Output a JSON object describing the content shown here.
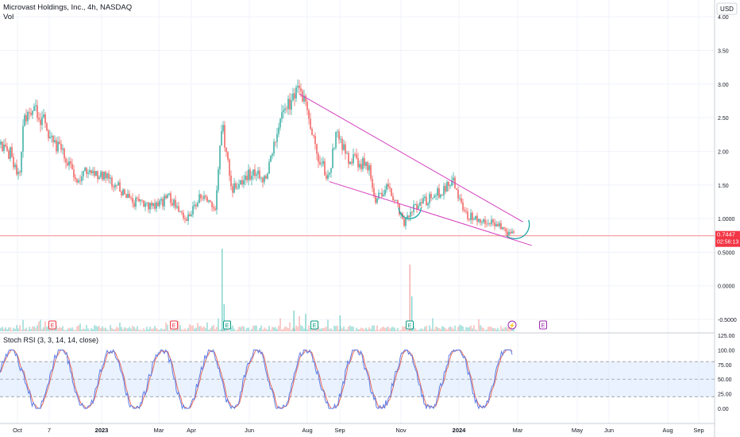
{
  "header": {
    "title": "Microvast Holdings, Inc., 4h, NASDAQ",
    "volume_label": "Vol",
    "currency": "USD"
  },
  "colors": {
    "up": "#26a69a",
    "down": "#ef5350",
    "trendline": "#d63fbf",
    "cup": "#1aa7a7",
    "price_line": "#f28b8b",
    "price_badge": "#f23645",
    "rsi_k": "#5b7be8",
    "rsi_d": "#e86a5b",
    "rsi_band": "#dbeafd",
    "earnings_red": "#f23645",
    "earnings_teal": "#089981",
    "earnings_purple": "#9c27b0"
  },
  "price_axis": {
    "ticks": [
      "4.00",
      "3.50",
      "3.00",
      "2.50",
      "2.00",
      "1.50",
      "1.0000",
      "0.5000",
      "0.0000",
      "-0.5000"
    ],
    "current_price": "0.7447",
    "countdown": "02:56:13"
  },
  "indicator": {
    "label": "Stoch RSI (3, 3, 14, 14, close)",
    "ticks": [
      "125.00",
      "100.00",
      "75.00",
      "50.00",
      "25.00",
      "0.00"
    ]
  },
  "time_axis": {
    "labels": [
      "Oct",
      "7",
      "2023",
      "Mar",
      "Apr",
      "Jun",
      "Aug",
      "Sep",
      "Nov",
      "2024",
      "Mar",
      "May",
      "Jun",
      "Aug",
      "Sep"
    ]
  },
  "earnings_markers": [
    {
      "label": "E",
      "kind": "red"
    },
    {
      "label": "E",
      "kind": "red"
    },
    {
      "label": "E",
      "kind": "teal"
    },
    {
      "label": "E",
      "kind": "teal"
    },
    {
      "label": "E",
      "kind": "teal"
    },
    {
      "label": "⚡",
      "kind": "purple"
    },
    {
      "label": "E",
      "kind": "purple"
    }
  ],
  "chart_data": {
    "type": "candlestick",
    "title": "Microvast Holdings, Inc., 4h, NASDAQ",
    "y_unit": "USD",
    "ylim": [
      -0.7,
      4.25
    ],
    "x_range": [
      "2022-09-24",
      "2024-09-20"
    ],
    "price_path": [
      [
        "2022-09-26",
        2.1
      ],
      [
        "2022-10-05",
        1.95
      ],
      [
        "2022-10-14",
        1.55
      ],
      [
        "2022-10-18",
        2.45
      ],
      [
        "2022-10-31",
        2.6
      ],
      [
        "2022-11-07",
        2.45
      ],
      [
        "2022-11-17",
        2.15
      ],
      [
        "2022-12-01",
        1.9
      ],
      [
        "2022-12-12",
        1.55
      ],
      [
        "2022-12-22",
        1.72
      ],
      [
        "2023-01-06",
        1.65
      ],
      [
        "2023-01-23",
        1.45
      ],
      [
        "2023-02-08",
        1.25
      ],
      [
        "2023-02-27",
        1.2
      ],
      [
        "2023-03-15",
        1.3
      ],
      [
        "2023-03-31",
        1.0
      ],
      [
        "2023-04-18",
        1.35
      ],
      [
        "2023-05-01",
        1.15
      ],
      [
        "2023-05-08",
        2.4
      ],
      [
        "2023-05-17",
        1.45
      ],
      [
        "2023-06-08",
        1.7
      ],
      [
        "2023-06-22",
        1.55
      ],
      [
        "2023-07-07",
        2.6
      ],
      [
        "2023-07-24",
        2.85
      ],
      [
        "2023-08-01",
        2.7
      ],
      [
        "2023-08-11",
        2.0
      ],
      [
        "2023-08-25",
        1.6
      ],
      [
        "2023-09-01",
        2.35
      ],
      [
        "2023-09-13",
        1.9
      ],
      [
        "2023-10-03",
        1.8
      ],
      [
        "2023-10-11",
        1.3
      ],
      [
        "2023-10-24",
        1.45
      ],
      [
        "2023-11-09",
        0.95
      ],
      [
        "2023-11-20",
        1.2
      ],
      [
        "2023-12-07",
        1.3
      ],
      [
        "2023-12-29",
        1.55
      ],
      [
        "2024-01-12",
        1.05
      ],
      [
        "2024-01-23",
        0.98
      ],
      [
        "2024-02-05",
        0.95
      ],
      [
        "2024-02-20",
        0.82
      ],
      [
        "2024-03-01",
        0.7447
      ]
    ],
    "current_price": 0.7447,
    "volume_spikes": [
      [
        "2023-05-08",
        0.52
      ],
      [
        "2023-11-15",
        0.42
      ],
      [
        "2023-11-17",
        0.22
      ],
      [
        "2023-05-10",
        0.17
      ],
      [
        "2023-07-20",
        0.13
      ],
      [
        "2023-08-01",
        0.11
      ],
      [
        "2023-09-05",
        0.1
      ]
    ],
    "annotations": {
      "upper_trendline": [
        [
          "2023-07-26",
          2.85
        ],
        [
          "2024-03-09",
          0.95
        ]
      ],
      "lower_trendline": [
        [
          "2023-08-25",
          1.55
        ],
        [
          "2024-03-18",
          0.6
        ]
      ],
      "cup_left_center": [
        "2023-11-15",
        1.0
      ],
      "cup_right_center": [
        "2024-02-26",
        0.98
      ]
    },
    "stoch_rsi": {
      "params": "3, 3, 14, 14, close",
      "ylim": [
        0,
        125
      ],
      "band": [
        20,
        80
      ],
      "midline": 50
    }
  }
}
